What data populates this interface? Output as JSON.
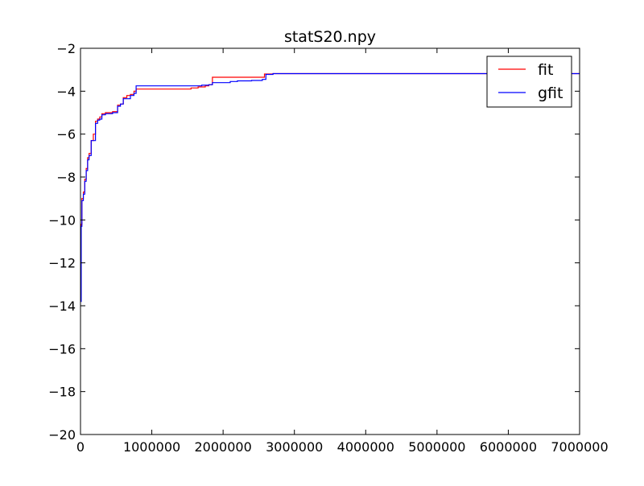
{
  "chart_data": {
    "type": "line",
    "title": "statS20.npy",
    "xlabel": "",
    "ylabel": "",
    "xlim": [
      0,
      7000000
    ],
    "ylim": [
      -20,
      -2
    ],
    "x_ticks": [
      0,
      1000000,
      2000000,
      3000000,
      4000000,
      5000000,
      6000000,
      7000000
    ],
    "x_tick_labels": [
      "0",
      "1000000",
      "2000000",
      "3000000",
      "4000000",
      "5000000",
      "6000000",
      "7000000"
    ],
    "y_ticks": [
      -20,
      -18,
      -16,
      -14,
      -12,
      -10,
      -8,
      -6,
      -4,
      -2
    ],
    "y_tick_labels": [
      "−20",
      "−18",
      "−16",
      "−14",
      "−12",
      "−10",
      "−8",
      "−6",
      "−4",
      "−2"
    ],
    "grid": false,
    "legend_position": "top-right",
    "step": true,
    "series": [
      {
        "name": "fit",
        "color": "#ff0000",
        "x": [
          0,
          10000,
          20000,
          40000,
          60000,
          80000,
          100000,
          120000,
          150000,
          180000,
          210000,
          240000,
          270000,
          300000,
          350000,
          450000,
          520000,
          560000,
          600000,
          650000,
          700000,
          750000,
          780000,
          1000000,
          1200000,
          1400000,
          1550000,
          1650000,
          1750000,
          1800000,
          1850000,
          2000000,
          2200000,
          2400000,
          2580000,
          2650000,
          2700000,
          3000000,
          4000000,
          5000000,
          6000000,
          7000000
        ],
        "values": [
          -13.5,
          -10.2,
          -9.0,
          -8.7,
          -8.1,
          -7.6,
          -7.1,
          -6.9,
          -6.3,
          -6.0,
          -5.4,
          -5.3,
          -5.2,
          -5.05,
          -5.0,
          -4.95,
          -4.65,
          -4.6,
          -4.3,
          -4.2,
          -4.15,
          -4.0,
          -3.9,
          -3.9,
          -3.9,
          -3.9,
          -3.85,
          -3.8,
          -3.75,
          -3.7,
          -3.35,
          -3.35,
          -3.35,
          -3.35,
          -3.2,
          -3.2,
          -3.18,
          -3.18,
          -3.18,
          -3.18,
          -3.18,
          -3.18
        ]
      },
      {
        "name": "gfit",
        "color": "#0000ff",
        "x": [
          0,
          10000,
          20000,
          40000,
          60000,
          80000,
          100000,
          120000,
          150000,
          180000,
          210000,
          240000,
          270000,
          300000,
          350000,
          450000,
          520000,
          560000,
          600000,
          650000,
          700000,
          750000,
          780000,
          1000000,
          1200000,
          1400000,
          1600000,
          1700000,
          1800000,
          1850000,
          2000000,
          2100000,
          2200000,
          2400000,
          2550000,
          2600000,
          2700000,
          3000000,
          4000000,
          5000000,
          6000000,
          7000000
        ],
        "values": [
          -13.8,
          -10.3,
          -9.1,
          -8.8,
          -8.2,
          -7.7,
          -7.2,
          -7.0,
          -6.3,
          -6.3,
          -5.5,
          -5.35,
          -5.3,
          -5.1,
          -5.05,
          -5.0,
          -4.7,
          -4.6,
          -4.35,
          -4.35,
          -4.2,
          -4.1,
          -3.75,
          -3.75,
          -3.75,
          -3.75,
          -3.75,
          -3.72,
          -3.7,
          -3.6,
          -3.6,
          -3.55,
          -3.52,
          -3.5,
          -3.45,
          -3.22,
          -3.18,
          -3.18,
          -3.18,
          -3.18,
          -3.18,
          -3.18
        ]
      }
    ]
  }
}
